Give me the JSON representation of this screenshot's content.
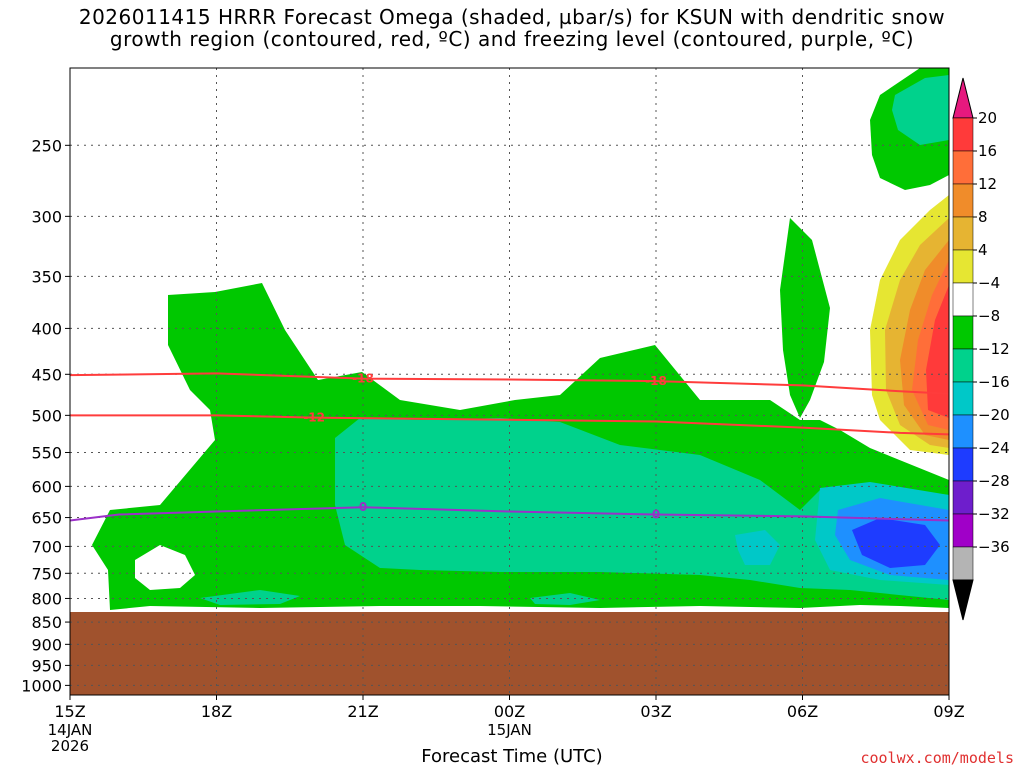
{
  "title_line1": "2026011415 HRRR Forecast Omega (shaded, µbar/s) for KSUN with dendritic snow",
  "title_line2": "growth region (contoured, red, ºC) and freezing level (contoured, purple, ºC)",
  "credit": "coolwx.com/models",
  "chart_data": {
    "type": "heatmap",
    "title": "2026011415 HRRR Forecast Omega (shaded, µbar/s) for KSUN with dendritic snow growth region (contoured, red, ºC) and freezing level (contoured, purple, ºC)",
    "xlabel": "Forecast Time (UTC)",
    "ylabel": "",
    "x_ticks": [
      {
        "label": "15Z",
        "sub": [
          "14JAN",
          "2026"
        ],
        "hour": 0
      },
      {
        "label": "18Z",
        "sub": [],
        "hour": 3
      },
      {
        "label": "21Z",
        "sub": [],
        "hour": 6
      },
      {
        "label": "00Z",
        "sub": [
          "15JAN"
        ],
        "hour": 9
      },
      {
        "label": "03Z",
        "sub": [],
        "hour": 12
      },
      {
        "label": "06Z",
        "sub": [],
        "hour": 15
      },
      {
        "label": "09Z",
        "sub": [],
        "hour": 18
      }
    ],
    "y_ticks": [
      250,
      300,
      350,
      400,
      450,
      500,
      550,
      600,
      650,
      700,
      750,
      800,
      850,
      900,
      950,
      1000
    ],
    "ylim": [
      1025,
      205
    ],
    "y_scale": "log",
    "xlim_hours": [
      0,
      18
    ],
    "grid": true,
    "colorbar": {
      "labels": [
        20,
        16,
        12,
        8,
        4,
        -4,
        -8,
        -12,
        -16,
        -20,
        -24,
        -28,
        -32,
        -36
      ],
      "colors": [
        "#ff3a3a",
        "#ff6e39",
        "#f08c2a",
        "#e6b432",
        "#e6e632",
        "#ffffff",
        "#00c800",
        "#00d28c",
        "#00c8c8",
        "#1e90ff",
        "#1e3cff",
        "#6e1ecc",
        "#a000c8",
        "#b4b4b4"
      ],
      "top_color": "#e6197e",
      "bottom_color": "#000000"
    },
    "terrain": {
      "color": "#a0522d",
      "surface_hpa": 842
    },
    "contours": [
      {
        "label": "-18",
        "color": "#ff3c3c",
        "points": [
          [
            0,
            451
          ],
          [
            3,
            449
          ],
          [
            6,
            455
          ],
          [
            9,
            456
          ],
          [
            12,
            458
          ],
          [
            15,
            463
          ],
          [
            17,
            470
          ],
          [
            18,
            473
          ]
        ]
      },
      {
        "label": "-12",
        "color": "#ff3c3c",
        "points": [
          [
            0,
            500
          ],
          [
            3,
            500
          ],
          [
            5,
            503
          ],
          [
            8,
            505
          ],
          [
            12,
            508
          ],
          [
            15,
            516
          ],
          [
            17,
            523
          ],
          [
            18,
            525
          ]
        ]
      },
      {
        "label": "0",
        "color": "#9b30c8",
        "points": [
          [
            0,
            655
          ],
          [
            1,
            645
          ],
          [
            3,
            640
          ],
          [
            6,
            633
          ],
          [
            9,
            640
          ],
          [
            12,
            645
          ],
          [
            15,
            648
          ],
          [
            18,
            655
          ]
        ]
      }
    ]
  }
}
